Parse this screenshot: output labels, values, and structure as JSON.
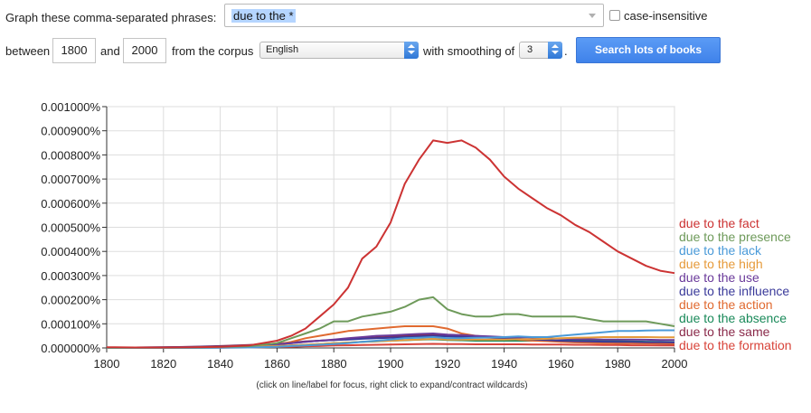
{
  "controls": {
    "phrases_label": "Graph these comma-separated phrases:",
    "query_value": "due to the *",
    "case_insensitive_label": "case-insensitive",
    "between_label": "between",
    "year_start": "1800",
    "and_label": "and",
    "year_end": "2000",
    "corpus_label": "from the corpus",
    "corpus_value": "English",
    "smoothing_label": "with smoothing of",
    "smoothing_value": "3",
    "period": ".",
    "search_button": "Search lots of books"
  },
  "footnote": "(click on line/label for focus, right click to expand/contract wildcards)",
  "chart_data": {
    "type": "line",
    "xlim": [
      1800,
      2000
    ],
    "ylim": [
      0,
      1e-05
    ],
    "x_ticks": [
      1800,
      1820,
      1840,
      1860,
      1880,
      1900,
      1920,
      1940,
      1960,
      1980,
      2000
    ],
    "y_ticks": [
      0,
      1e-06,
      2e-06,
      3e-06,
      4e-06,
      5e-06,
      6e-06,
      7e-06,
      8e-06,
      9e-06,
      1e-05
    ],
    "y_tick_labels": [
      "0.000000%",
      "0.000100%",
      "0.000200%",
      "0.000300%",
      "0.000400%",
      "0.000500%",
      "0.000600%",
      "0.000700%",
      "0.000800%",
      "0.000900%",
      "0.001000%"
    ],
    "grid": true,
    "legend_placement": "right, at line ends",
    "x": [
      1800,
      1810,
      1820,
      1830,
      1840,
      1850,
      1860,
      1865,
      1870,
      1875,
      1880,
      1885,
      1890,
      1895,
      1900,
      1905,
      1910,
      1915,
      1920,
      1925,
      1930,
      1935,
      1940,
      1945,
      1950,
      1955,
      1960,
      1965,
      1970,
      1975,
      1980,
      1985,
      1990,
      1995,
      2000
    ],
    "series": [
      {
        "name": "due to the fact",
        "color": "#cc3333",
        "values": [
          3e-08,
          2e-08,
          2e-08,
          3e-08,
          5e-08,
          1e-07,
          3e-07,
          5e-07,
          8e-07,
          1.3e-06,
          1.8e-06,
          2.5e-06,
          3.7e-06,
          4.2e-06,
          5.2e-06,
          6.8e-06,
          7.8e-06,
          8.6e-06,
          8.5e-06,
          8.6e-06,
          8.3e-06,
          7.8e-06,
          7.1e-06,
          6.6e-06,
          6.2e-06,
          5.8e-06,
          5.5e-06,
          5.1e-06,
          4.8e-06,
          4.4e-06,
          4e-06,
          3.7e-06,
          3.4e-06,
          3.2e-06,
          3.1e-06
        ]
      },
      {
        "name": "due to the presence",
        "color": "#6e9a5a",
        "values": [
          1e-08,
          1e-08,
          1e-08,
          2e-08,
          4e-08,
          7e-08,
          2e-07,
          4e-07,
          6e-07,
          8e-07,
          1.1e-06,
          1.1e-06,
          1.3e-06,
          1.4e-06,
          1.5e-06,
          1.7e-06,
          2e-06,
          2.1e-06,
          1.6e-06,
          1.4e-06,
          1.3e-06,
          1.3e-06,
          1.4e-06,
          1.4e-06,
          1.3e-06,
          1.3e-06,
          1.3e-06,
          1.3e-06,
          1.2e-06,
          1.1e-06,
          1.1e-06,
          1.1e-06,
          1.1e-06,
          1e-06,
          9e-07
        ]
      },
      {
        "name": "due to the lack",
        "color": "#4a9ad8",
        "values": [
          0,
          0,
          0,
          0,
          1e-08,
          2e-08,
          5e-08,
          8e-08,
          1e-07,
          1.3e-07,
          1.6e-07,
          2e-07,
          2.5e-07,
          3e-07,
          3.5e-07,
          4e-07,
          4.2e-07,
          4.5e-07,
          4e-07,
          4e-07,
          4.2e-07,
          4.3e-07,
          4.5e-07,
          4.8e-07,
          4.5e-07,
          4.5e-07,
          5e-07,
          5.5e-07,
          6e-07,
          6.5e-07,
          7e-07,
          7e-07,
          7.2e-07,
          7.3e-07,
          7.3e-07
        ]
      },
      {
        "name": "due to the high",
        "color": "#e69a3a",
        "values": [
          0,
          0,
          0,
          1e-08,
          2e-08,
          4e-08,
          8e-08,
          1e-07,
          1.3e-07,
          1.6e-07,
          2e-07,
          2.2e-07,
          2.5e-07,
          2.8e-07,
          3e-07,
          3.3e-07,
          3.5e-07,
          3.8e-07,
          3.5e-07,
          3.5e-07,
          3.5e-07,
          3.5e-07,
          3.5e-07,
          3.6e-07,
          3.6e-07,
          3.8e-07,
          4e-07,
          4.2e-07,
          4.3e-07,
          4.5e-07,
          4.5e-07,
          4.5e-07,
          4.5e-07,
          4.4e-07,
          4.4e-07
        ]
      },
      {
        "name": "due to the use",
        "color": "#6a3a9a",
        "values": [
          1e-08,
          1e-08,
          2e-08,
          3e-08,
          5e-08,
          1e-07,
          1.5e-07,
          2e-07,
          2.5e-07,
          3e-07,
          3.5e-07,
          4e-07,
          4.5e-07,
          5e-07,
          5.2e-07,
          5.5e-07,
          5.8e-07,
          6e-07,
          5.5e-07,
          5.3e-07,
          5e-07,
          4.8e-07,
          4.5e-07,
          4.5e-07,
          4.3e-07,
          4e-07,
          3.8e-07,
          3.7e-07,
          3.6e-07,
          3.5e-07,
          3.5e-07,
          3.5e-07,
          3.4e-07,
          3.3e-07,
          3.3e-07
        ]
      },
      {
        "name": "due to the influence",
        "color": "#3a3a9a",
        "values": [
          2e-08,
          2e-08,
          3e-08,
          4e-08,
          6e-08,
          1e-07,
          1.5e-07,
          2e-07,
          2.5e-07,
          3e-07,
          3.3e-07,
          3.5e-07,
          3.8e-07,
          4e-07,
          4.2e-07,
          4.5e-07,
          4.8e-07,
          5e-07,
          4.8e-07,
          4.6e-07,
          4.5e-07,
          4.3e-07,
          4e-07,
          3.8e-07,
          3.5e-07,
          3.3e-07,
          3e-07,
          2.8e-07,
          2.7e-07,
          2.6e-07,
          2.5e-07,
          2.5e-07,
          2.4e-07,
          2.4e-07,
          2.3e-07
        ]
      },
      {
        "name": "due to the action",
        "color": "#e06a30",
        "values": [
          0,
          0,
          1e-08,
          2e-08,
          4e-08,
          8e-08,
          1.5e-07,
          2.5e-07,
          4e-07,
          5e-07,
          6e-07,
          7e-07,
          7.5e-07,
          8e-07,
          8.5e-07,
          9e-07,
          9e-07,
          9e-07,
          8e-07,
          6e-07,
          5e-07,
          4.5e-07,
          4e-07,
          3.5e-07,
          3e-07,
          2.8e-07,
          2.5e-07,
          2.3e-07,
          2.2e-07,
          2e-07,
          2e-07,
          2e-07,
          1.9e-07,
          1.9e-07,
          1.8e-07
        ]
      },
      {
        "name": "due to the absence",
        "color": "#1a8a5a",
        "values": [
          0,
          0,
          0,
          1e-08,
          2e-08,
          4e-08,
          8e-08,
          1e-07,
          1.3e-07,
          1.6e-07,
          2e-07,
          2.2e-07,
          2.5e-07,
          2.7e-07,
          3e-07,
          3.2e-07,
          3.4e-07,
          3.6e-07,
          3.3e-07,
          3.2e-07,
          3e-07,
          3e-07,
          3e-07,
          3e-07,
          3e-07,
          3e-07,
          3e-07,
          3e-07,
          3e-07,
          2.9e-07,
          2.8e-07,
          2.7e-07,
          2.6e-07,
          2.5e-07,
          2.4e-07
        ]
      },
      {
        "name": "due to the same",
        "color": "#8a2a4a",
        "values": [
          2e-08,
          2e-08,
          3e-08,
          5e-08,
          8e-08,
          1.2e-07,
          1.8e-07,
          2.2e-07,
          2.7e-07,
          3e-07,
          3.3e-07,
          3.6e-07,
          4e-07,
          4.3e-07,
          4.6e-07,
          5e-07,
          5.3e-07,
          5.5e-07,
          5.2e-07,
          5e-07,
          4.5e-07,
          4.2e-07,
          4e-07,
          3.6e-07,
          3.2e-07,
          3e-07,
          2.7e-07,
          2.5e-07,
          2.3e-07,
          2.2e-07,
          2e-07,
          2e-07,
          1.9e-07,
          1.8e-07,
          1.7e-07
        ]
      },
      {
        "name": "due to the formation",
        "color": "#d8443a",
        "values": [
          0,
          0,
          0,
          1e-08,
          1e-08,
          2e-08,
          4e-08,
          5e-08,
          7e-08,
          8e-08,
          1e-07,
          1.1e-07,
          1.2e-07,
          1.3e-07,
          1.4e-07,
          1.5e-07,
          1.6e-07,
          1.7e-07,
          1.6e-07,
          1.6e-07,
          1.5e-07,
          1.5e-07,
          1.5e-07,
          1.5e-07,
          1.4e-07,
          1.4e-07,
          1.4e-07,
          1.3e-07,
          1.3e-07,
          1.2e-07,
          1.2e-07,
          1.1e-07,
          1.1e-07,
          1e-07,
          1e-07
        ]
      }
    ]
  }
}
